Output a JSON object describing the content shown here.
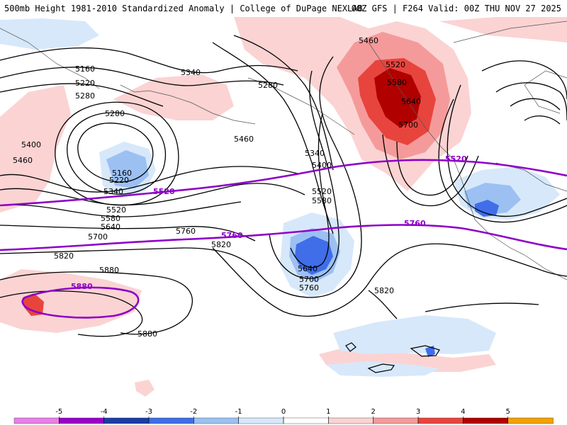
{
  "header": {
    "title_left": "500mb Height 1981-2010 Standardized Anomaly | College of DuPage NEXLAB",
    "title_right": "00Z GFS | F264 Valid: 00Z THU NOV 27 2025"
  },
  "map": {
    "contour_labels": [
      "5160",
      "5220",
      "5280",
      "5340",
      "5280",
      "5280",
      "5400",
      "5460",
      "5160",
      "5220",
      "5340",
      "5520",
      "5580",
      "5640",
      "5700",
      "5760",
      "5820",
      "5460",
      "5340",
      "5400",
      "5520",
      "5580",
      "5460",
      "5520",
      "5580",
      "5640",
      "5700",
      "5640",
      "5700",
      "5760",
      "5820",
      "5820",
      "5880",
      "5880"
    ],
    "highlight_labels": [
      "5520",
      "5520",
      "5760",
      "5760",
      "5880"
    ],
    "highlight_color": "#8e00c8"
  },
  "colorbar": {
    "ticks": [
      "-5",
      "-4",
      "-3",
      "-2",
      "-1",
      "0",
      "1",
      "2",
      "3",
      "4",
      "5"
    ],
    "colors": [
      "#e87fe8",
      "#9b00c8",
      "#1c3ca8",
      "#3f6ee8",
      "#9cc0f2",
      "#d7e8fb",
      "#ffffff",
      "#fbd3d3",
      "#f59a9a",
      "#e8443e",
      "#b00000",
      "#f5a100"
    ]
  }
}
